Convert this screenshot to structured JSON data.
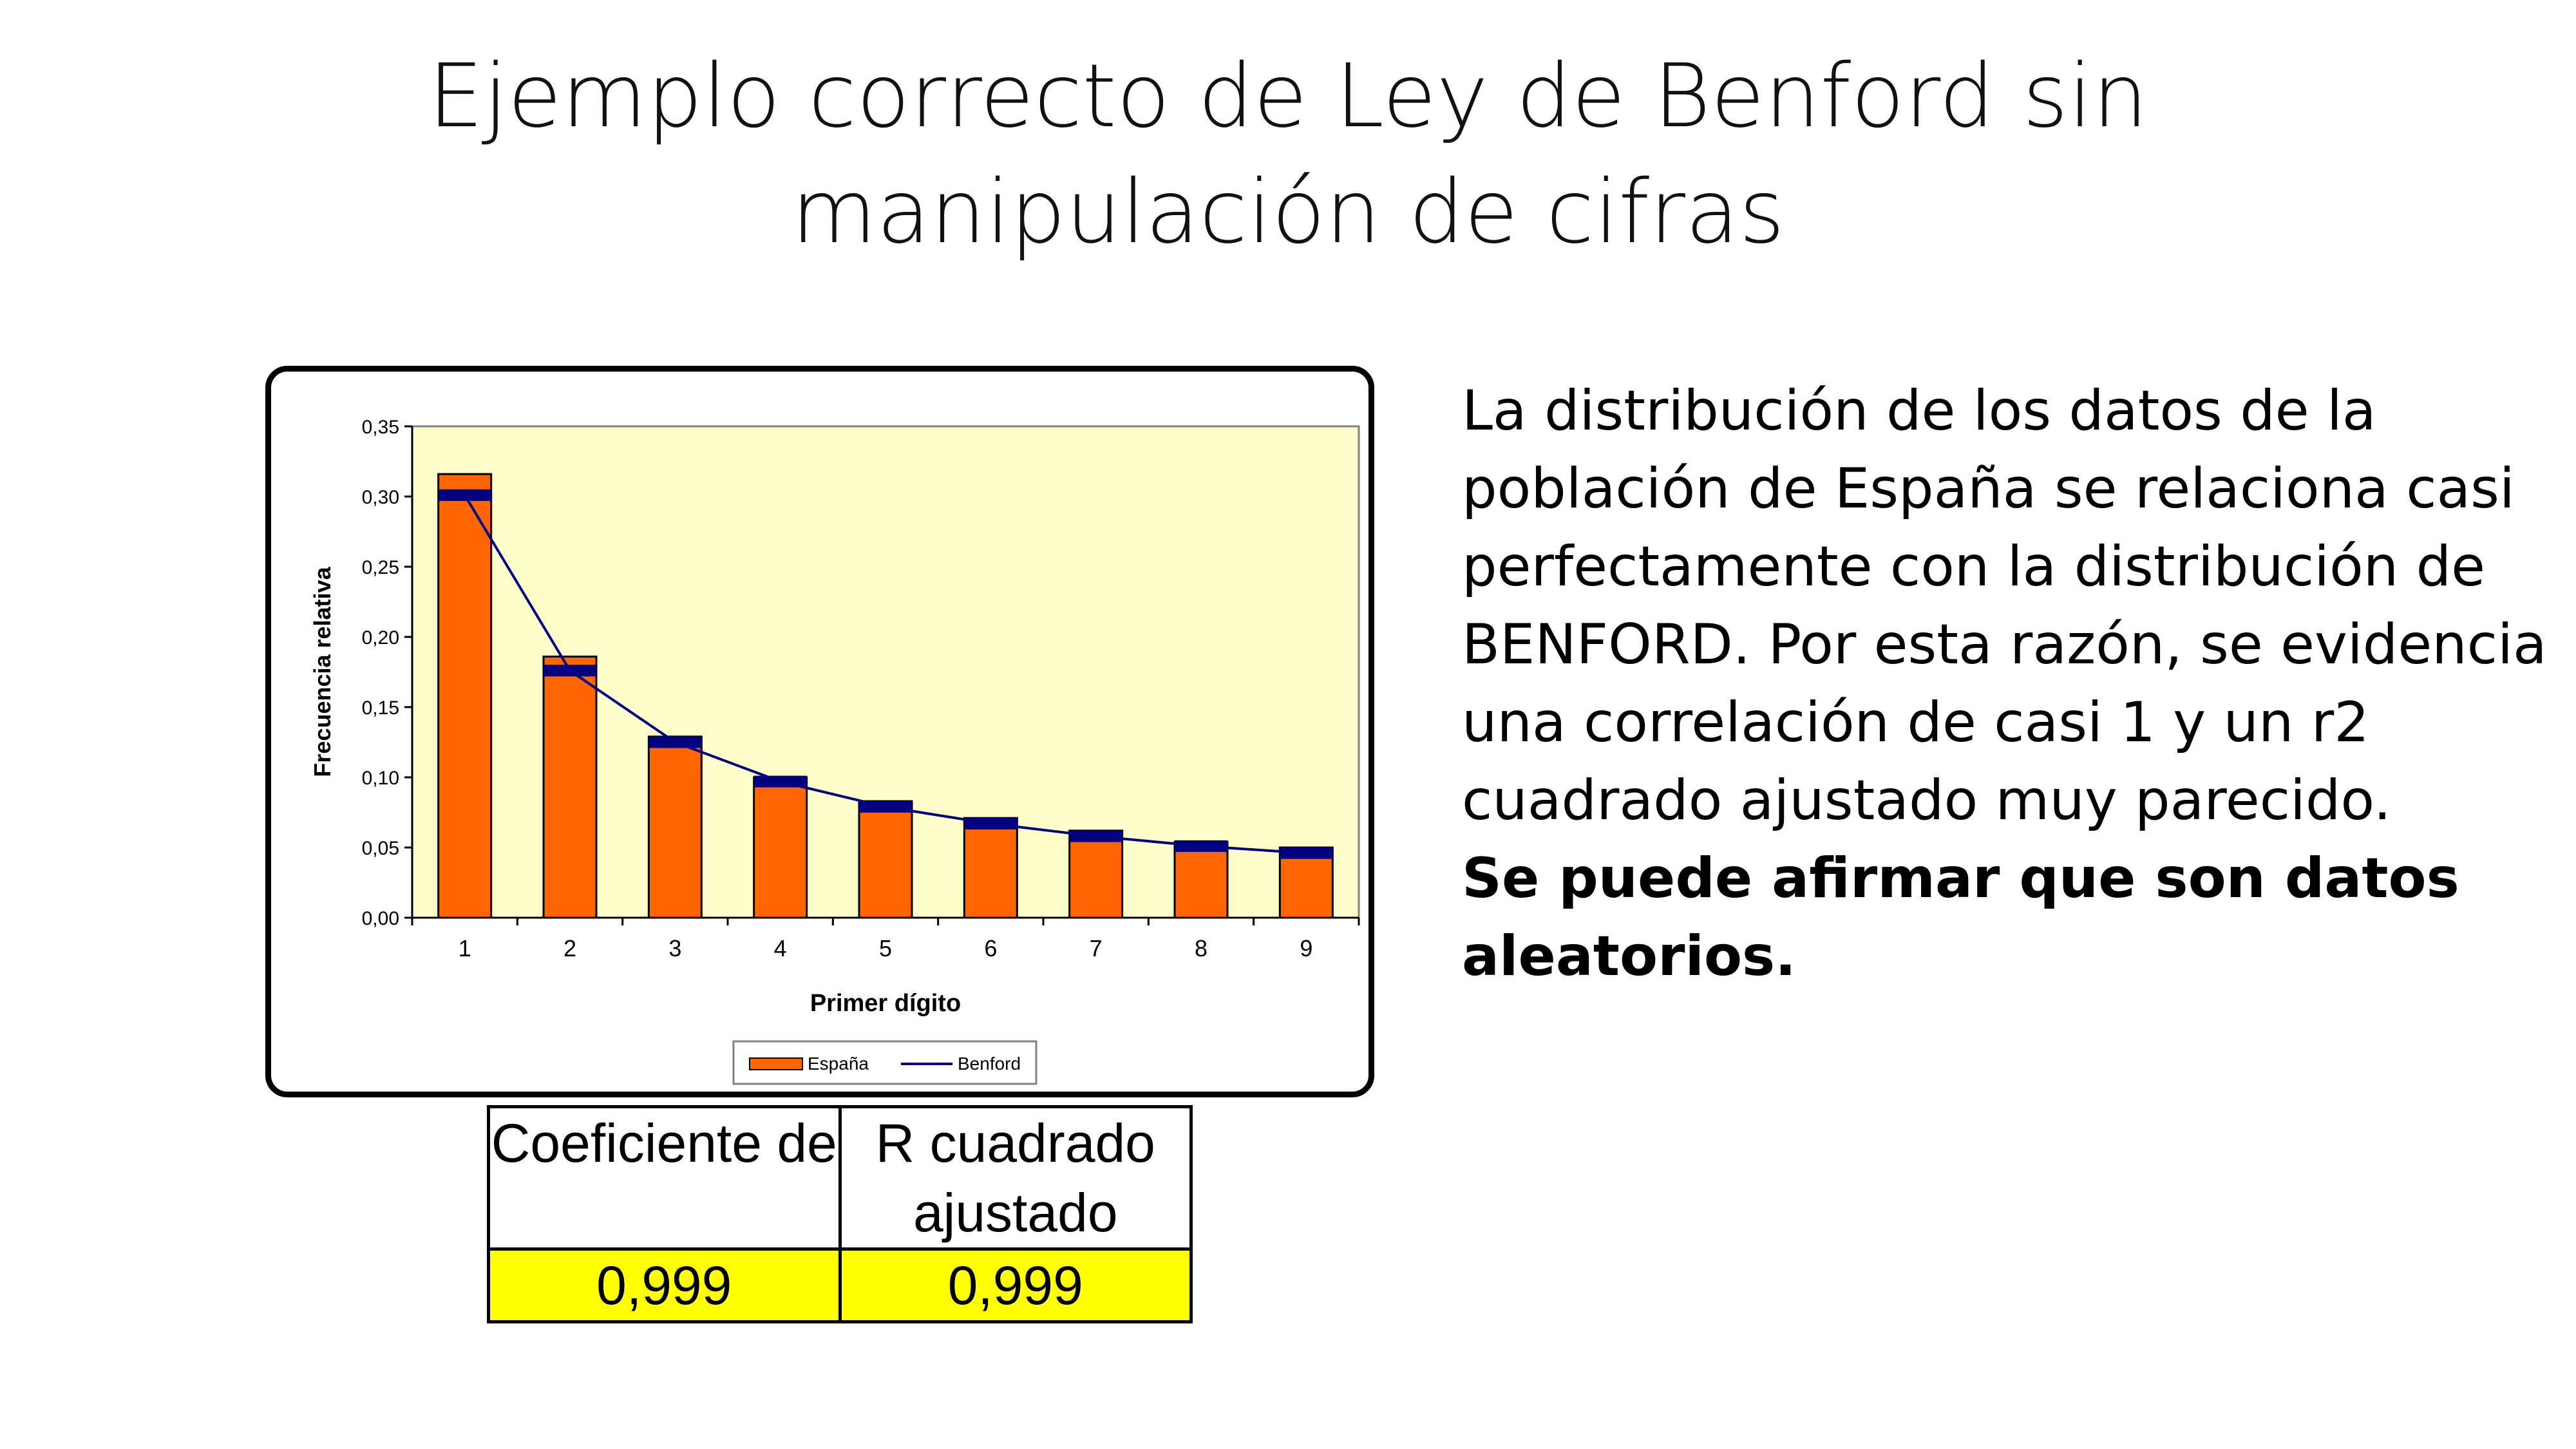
{
  "slide": {
    "title_line1": "Ejemplo correcto de Ley de Benford sin",
    "title_line2": "manipulación de cifras",
    "text_paragraph": "La distribución de los datos de la población de España se relaciona casi perfectamente con la distribución de BENFORD. Por esta razón, se evidencia una correlación de casi 1 y un r2 cuadrado ajustado muy parecido.",
    "text_emphasis": "Se puede afirmar que son datos aleatorios."
  },
  "stats_table": {
    "headers": [
      "Coeficiente de",
      "R cuadrado ajustado"
    ],
    "values": [
      "0,999",
      "0,999"
    ],
    "highlight_color": "#ffff00"
  },
  "chart_data": {
    "type": "bar",
    "categories": [
      "1",
      "2",
      "3",
      "4",
      "5",
      "6",
      "7",
      "8",
      "9"
    ],
    "series": [
      {
        "name": "España",
        "kind": "bar",
        "color": "#ff6600",
        "values": [
          0.316,
          0.186,
          0.129,
          0.1,
          0.083,
          0.071,
          0.062,
          0.054,
          0.05
        ]
      },
      {
        "name": "Benford",
        "kind": "line",
        "color": "#000080",
        "values": [
          0.301,
          0.176,
          0.125,
          0.097,
          0.079,
          0.067,
          0.058,
          0.051,
          0.046
        ]
      }
    ],
    "xlabel": "Primer dígito",
    "ylabel": "Frecuencia relativa",
    "ylim": [
      0,
      0.35
    ],
    "yticks": [
      "0,00",
      "0,05",
      "0,10",
      "0,15",
      "0,20",
      "0,25",
      "0,30",
      "0,35"
    ],
    "plot_background": "#ffffcc",
    "legend_position": "bottom"
  }
}
